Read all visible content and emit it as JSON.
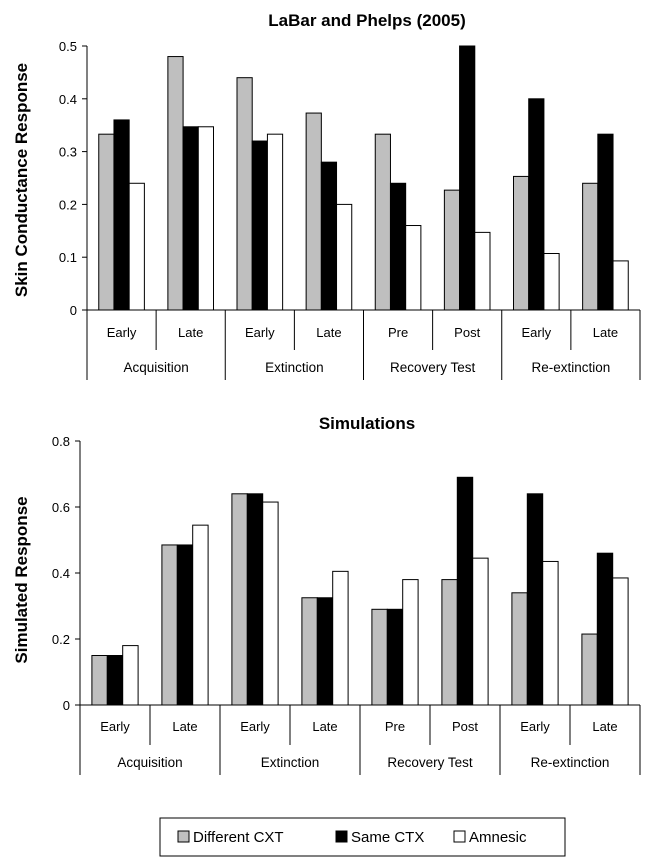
{
  "chart_data": [
    {
      "type": "bar",
      "title": "LaBar and Phelps (2005)",
      "ylabel": "Skin Conductance Response",
      "xlabel": "",
      "ylim": [
        0,
        0.5
      ],
      "yticks": [
        0,
        0.1,
        0.2,
        0.3,
        0.4,
        0.5
      ],
      "ytick_labels": [
        "0",
        "0.1",
        "0.2",
        "0.3",
        "0.4",
        "0.5"
      ],
      "categories": [
        "Early",
        "Late",
        "Early",
        "Late",
        "Pre",
        "Post",
        "Early",
        "Late"
      ],
      "groups": [
        {
          "label": "Acquisition",
          "span": 2
        },
        {
          "label": "Extinction",
          "span": 2
        },
        {
          "label": "Recovery Test",
          "span": 2
        },
        {
          "label": "Re-extinction",
          "span": 2
        }
      ],
      "series": [
        {
          "name": "Different CXT",
          "color": "#bfbfbf",
          "values": [
            0.333,
            0.48,
            0.44,
            0.373,
            0.333,
            0.227,
            0.253,
            0.24
          ]
        },
        {
          "name": "Same CTX",
          "color": "#000000",
          "values": [
            0.36,
            0.347,
            0.32,
            0.28,
            0.24,
            0.5,
            0.4,
            0.333
          ]
        },
        {
          "name": "Amnesic",
          "color": "#ffffff",
          "values": [
            0.24,
            0.347,
            0.333,
            0.2,
            0.16,
            0.147,
            0.107,
            0.093
          ]
        }
      ],
      "grid": false
    },
    {
      "type": "bar",
      "title": "Simulations",
      "ylabel": "Simulated Response",
      "xlabel": "",
      "ylim": [
        0,
        0.8
      ],
      "yticks": [
        0,
        0.2,
        0.4,
        0.6,
        0.8
      ],
      "ytick_labels": [
        "0",
        "0.2",
        "0.4",
        "0.6",
        "0.8"
      ],
      "categories": [
        "Early",
        "Late",
        "Early",
        "Late",
        "Pre",
        "Post",
        "Early",
        "Late"
      ],
      "groups": [
        {
          "label": "Acquisition",
          "span": 2
        },
        {
          "label": "Extinction",
          "span": 2
        },
        {
          "label": "Recovery Test",
          "span": 2
        },
        {
          "label": "Re-extinction",
          "span": 2
        }
      ],
      "series": [
        {
          "name": "Different CXT",
          "color": "#bfbfbf",
          "values": [
            0.15,
            0.485,
            0.64,
            0.325,
            0.29,
            0.38,
            0.34,
            0.215
          ]
        },
        {
          "name": "Same CTX",
          "color": "#000000",
          "values": [
            0.15,
            0.485,
            0.64,
            0.325,
            0.29,
            0.69,
            0.64,
            0.46
          ]
        },
        {
          "name": "Amnesic",
          "color": "#ffffff",
          "values": [
            0.18,
            0.545,
            0.615,
            0.405,
            0.38,
            0.445,
            0.435,
            0.385
          ]
        }
      ],
      "grid": false
    }
  ],
  "legend": {
    "placement": "bottom-center",
    "items": [
      {
        "label": "Different CXT",
        "color": "#bfbfbf"
      },
      {
        "label": "Same CTX",
        "color": "#000000"
      },
      {
        "label": "Amnesic",
        "color": "#ffffff"
      }
    ]
  }
}
